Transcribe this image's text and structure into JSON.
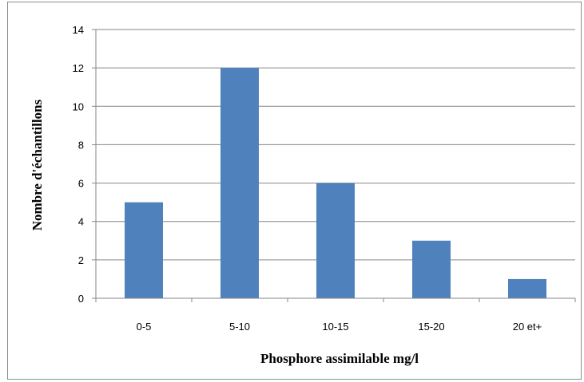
{
  "chart_data": {
    "type": "bar",
    "title": "",
    "xlabel": "Phosphore assimilable  mg/l",
    "ylabel": "Nombre d'échantillons",
    "categories": [
      "0-5",
      "5-10",
      "10-15",
      "15-20",
      "20 et+"
    ],
    "values": [
      5,
      12,
      6,
      3,
      1
    ],
    "ylim": [
      0,
      14
    ],
    "yticks": [
      "0",
      "2",
      "4",
      "6",
      "8",
      "10",
      "12",
      "14"
    ],
    "grid": true,
    "legend": "none",
    "bar_color": "#4f81bd",
    "grid_color": "#868686"
  }
}
